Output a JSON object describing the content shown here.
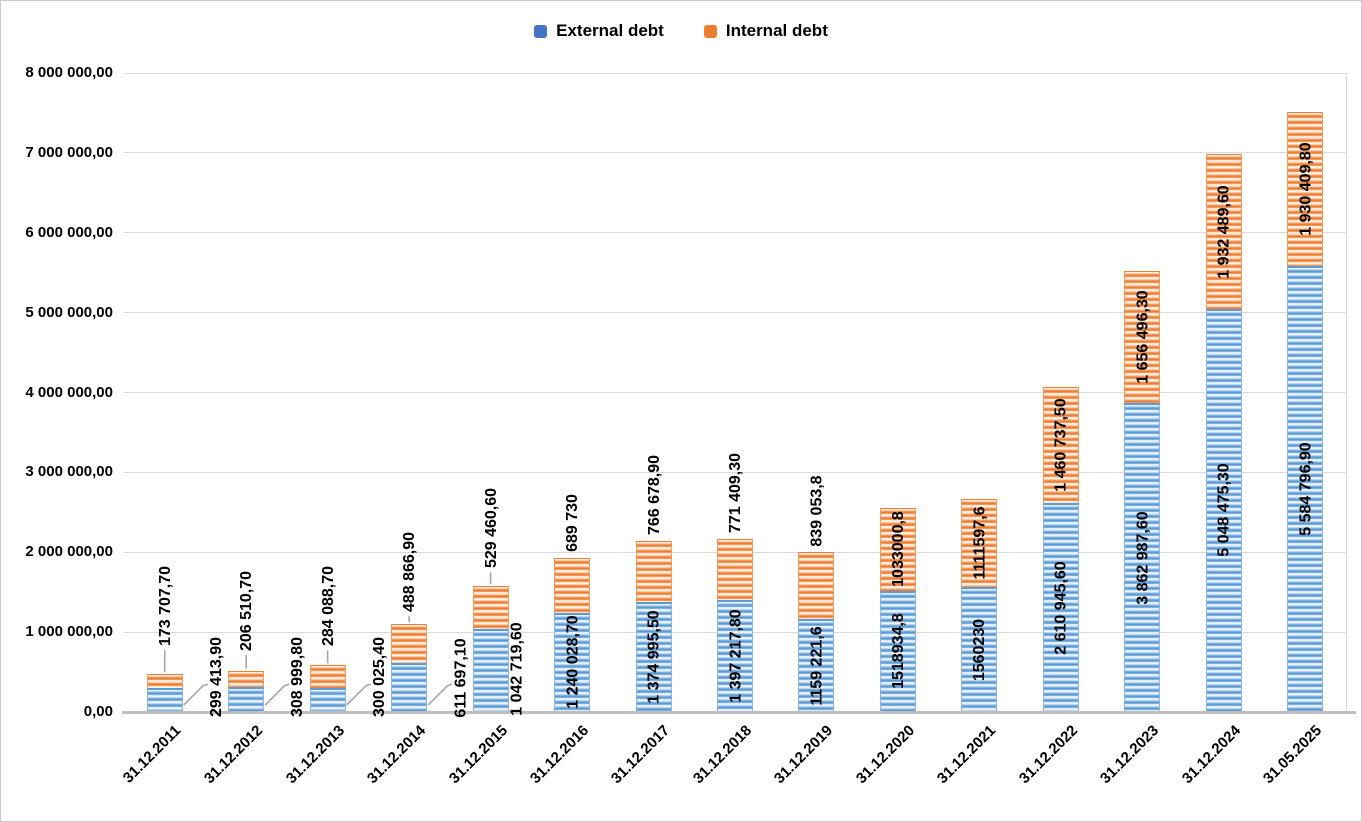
{
  "window": {
    "background": "#ffffff",
    "border_color": "#c9c9c9"
  },
  "chart_data": {
    "type": "bar",
    "stacked": true,
    "title": "",
    "xlabel": "",
    "ylabel": "",
    "grid": true,
    "legend_position": "top",
    "ylim": [
      0,
      8000000
    ],
    "ytick_step": 1000000,
    "ytick_labels": [
      "0,00",
      "1 000 000,00",
      "2 000 000,00",
      "3 000 000,00",
      "4 000 000,00",
      "5 000 000,00",
      "6 000 000,00",
      "7 000 000,00",
      "8 000 000,00"
    ],
    "categories": [
      "31.12.2011",
      "31.12.2012",
      "31.12.2013",
      "31.12.2014",
      "31.12.2015",
      "31.12.2016",
      "31.12.2017",
      "31.12.2018",
      "31.12.2019",
      "31.12.2020",
      "31.12.2021",
      "31.12.2022",
      "31.12.2023",
      "31.12.2024",
      "31.05.2025"
    ],
    "series": [
      {
        "name": "External debt",
        "color": "#4472C4",
        "values": [
          299413.9,
          308999.8,
          300025.4,
          611697.1,
          1042719.6,
          1240028.7,
          1374995.5,
          1397217.8,
          1159221.6,
          1518934.8,
          1560230,
          2610945.6,
          3862987.6,
          5048475.3,
          5584796.9
        ],
        "labels": [
          "299 413,90",
          "308 999,80",
          "300 025,40",
          "611 697,10",
          "1 042 719,60",
          "1 240 028,70",
          "1 374 995,50",
          "1 397 217,80",
          "1159 221,6",
          "1518934,8",
          "1560230",
          "2 610 945,60",
          "3 862 987,60",
          "5 048 475,30",
          "5 584 796,90"
        ]
      },
      {
        "name": "Internal debt",
        "color": "#ED7D31",
        "values": [
          173707.7,
          206510.7,
          284088.7,
          488866.9,
          529460.6,
          689730,
          766678.9,
          771409.3,
          839053.8,
          1033000.8,
          1111597.6,
          1460737.5,
          1656496.3,
          1932489.6,
          1930409.8
        ],
        "labels": [
          "173 707,70",
          "206 510,70",
          "284 088,70",
          "488 866,90",
          "529 460,60",
          "689 730",
          "766 678,90",
          "771 409,30",
          "839 053,8",
          "1033000,8",
          "1111597,6",
          "1 460 737,50",
          "1 656 496,30",
          "1 932 489,60",
          "1 930 409,80"
        ]
      }
    ],
    "colors": {
      "gridline": "#dadada",
      "axis_line": "#bfbfbf",
      "leader_line": "#a6a6a6",
      "label_text": "#000000"
    }
  }
}
